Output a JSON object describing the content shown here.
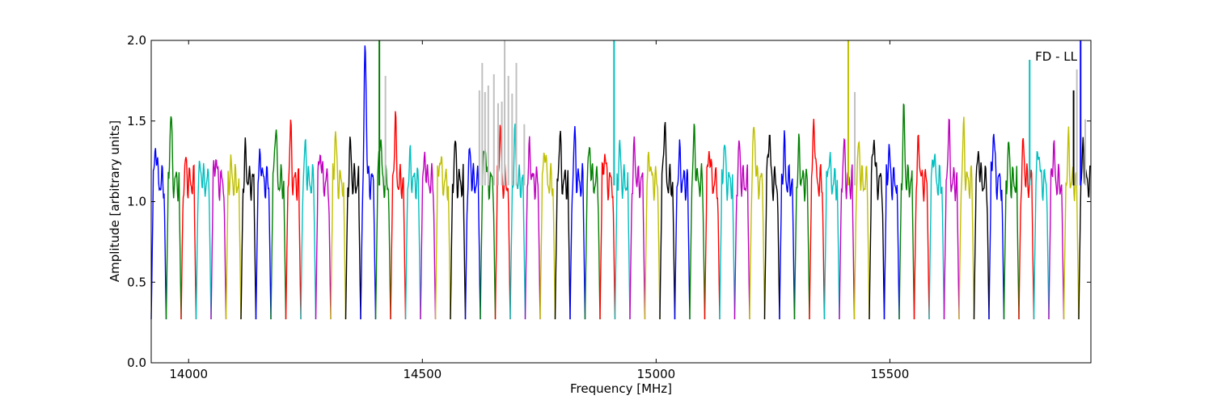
{
  "chart_data": {
    "type": "line",
    "title": "",
    "annotation": "FD - LL",
    "xlabel": "Frequency [MHz]",
    "ylabel": "Amplitude [arbitrary units]",
    "xlim": [
      13920,
      15930
    ],
    "ylim": [
      0.0,
      2.0
    ],
    "x_ticks": [
      14000,
      14500,
      15000,
      15500
    ],
    "x_tick_labels": [
      "14000",
      "14500",
      "15000",
      "15500"
    ],
    "y_ticks": [
      0.0,
      0.5,
      1.0,
      1.5,
      2.0
    ],
    "y_tick_labels": [
      "0.0",
      "0.5",
      "1.0",
      "1.5",
      "2.0"
    ],
    "grid": false,
    "legend": "none",
    "series_colors": [
      "#0000ff",
      "#008000",
      "#ff0000",
      "#00bfbf",
      "#bf00bf",
      "#bfbf00",
      "#000000"
    ],
    "flagged_color": "#c0c0c0",
    "channel_width_mhz": 32,
    "channels_start_mhz": 13920,
    "channel_peaks": [
      1.37,
      1.56,
      1.23,
      1.21,
      1.29,
      1.21,
      1.29,
      1.3,
      1.49,
      1.44,
      1.34,
      1.33,
      1.43,
      1.33,
      2.0,
      1.45,
      1.5,
      1.25,
      1.28,
      1.3,
      1.35,
      1.3,
      1.39,
      1.45,
      1.38,
      1.33,
      1.36,
      1.41,
      1.4,
      1.35,
      1.32,
      1.32,
      1.32,
      1.3,
      1.5,
      1.28,
      1.43,
      1.35,
      1.36,
      1.33,
      1.5,
      1.46,
      1.35,
      1.32,
      1.52,
      1.29,
      1.34,
      1.35,
      1.43,
      1.32,
      1.53,
      1.38,
      1.33,
      1.47,
      1.44,
      1.31,
      1.46,
      1.33,
      1.35,
      1.36,
      1.34,
      1.35,
      1.33
    ],
    "spikes": [
      {
        "x": 14408,
        "y": 2.0,
        "color": "#008000"
      },
      {
        "x": 14421,
        "y": 1.78,
        "color": "#c0c0c0"
      },
      {
        "x": 14622,
        "y": 1.69,
        "color": "#c0c0c0"
      },
      {
        "x": 14628,
        "y": 1.86,
        "color": "#c0c0c0"
      },
      {
        "x": 14634,
        "y": 1.68,
        "color": "#c0c0c0"
      },
      {
        "x": 14641,
        "y": 1.72,
        "color": "#c0c0c0"
      },
      {
        "x": 14653,
        "y": 1.79,
        "color": "#c0c0c0"
      },
      {
        "x": 14662,
        "y": 1.61,
        "color": "#c0c0c0"
      },
      {
        "x": 14670,
        "y": 1.62,
        "color": "#c0c0c0"
      },
      {
        "x": 14676,
        "y": 2.0,
        "color": "#c0c0c0"
      },
      {
        "x": 14684,
        "y": 1.78,
        "color": "#c0c0c0"
      },
      {
        "x": 14692,
        "y": 1.67,
        "color": "#c0c0c0"
      },
      {
        "x": 14701,
        "y": 1.86,
        "color": "#c0c0c0"
      },
      {
        "x": 14718,
        "y": 1.48,
        "color": "#c0c0c0"
      },
      {
        "x": 14910,
        "y": 2.0,
        "color": "#00bfbf"
      },
      {
        "x": 15411,
        "y": 2.0,
        "color": "#bfbf00"
      },
      {
        "x": 15425,
        "y": 1.68,
        "color": "#c0c0c0"
      },
      {
        "x": 15799,
        "y": 1.88,
        "color": "#00bfbf"
      },
      {
        "x": 15893,
        "y": 1.69,
        "color": "#000000"
      },
      {
        "x": 15900,
        "y": 1.82,
        "color": "#c0c0c0"
      },
      {
        "x": 15908,
        "y": 2.0,
        "color": "#0000ff"
      },
      {
        "x": 15918,
        "y": 1.51,
        "color": "#c0c0c0"
      }
    ]
  }
}
